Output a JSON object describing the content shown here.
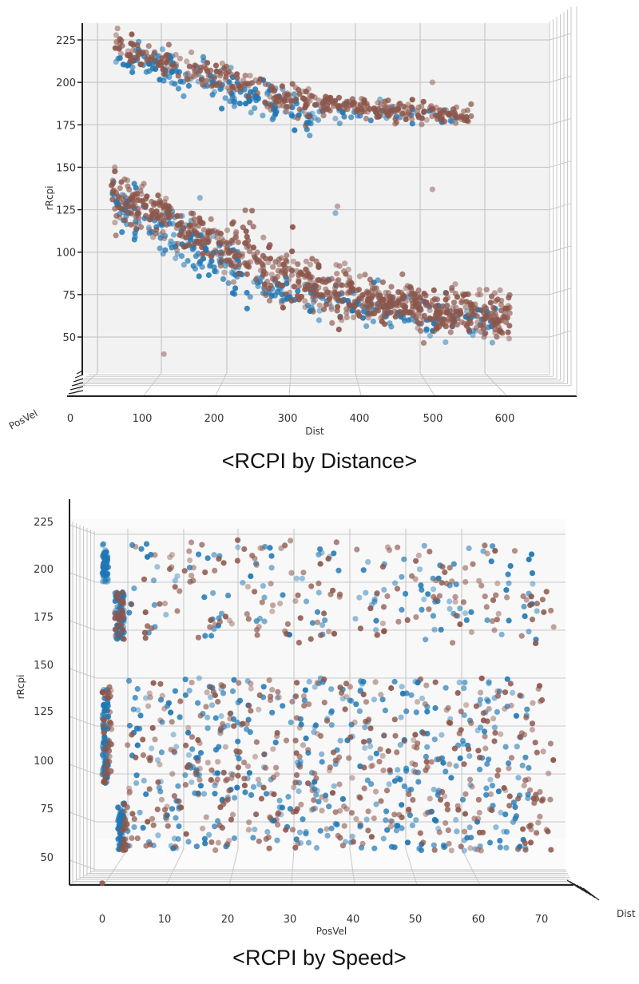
{
  "figure": {
    "top_caption": "<RCPI by Distance>",
    "bottom_caption": "<RCPI by Speed>"
  },
  "colors": {
    "series_blue": "#1f77b4",
    "series_brown": "#8c564b",
    "pane_bg": "#f2f2f2",
    "pane_bg_light": "#f8f8f8",
    "grid": "#c8c8c8",
    "axis": "#222222"
  },
  "chart_data": [
    {
      "type": "scatter",
      "projection": "3d",
      "title": "<RCPI by Distance>",
      "xlabel": "Dist",
      "ylabel": "rRcpi",
      "zlabel": "PosVel",
      "x_ticks": [
        "0",
        "100",
        "200",
        "300",
        "400",
        "500",
        "600"
      ],
      "y_ticks": [
        "225",
        "200",
        "175",
        "150",
        "125",
        "100",
        "75",
        "50"
      ],
      "xlim": [
        0,
        650
      ],
      "ylim": [
        35,
        230
      ],
      "grid": true,
      "legend": null,
      "series": [
        {
          "name": "blue",
          "color": "#1f77b4",
          "clusters": [
            {
              "x_range": [
                35,
                340
              ],
              "y_start": 218,
              "y_end": 180,
              "spread": 9,
              "count": 170
            },
            {
              "x_range": [
                340,
                560
              ],
              "y_start": 182,
              "y_end": 180,
              "spread": 4,
              "count": 45
            },
            {
              "x_range": [
                30,
                230
              ],
              "y_start": 128,
              "y_end": 88,
              "spread": 12,
              "count": 150
            },
            {
              "x_range": [
                230,
                620
              ],
              "y_start": 80,
              "y_end": 55,
              "spread": 10,
              "count": 170
            }
          ],
          "outliers": [
            [
              165,
              132
            ],
            [
              372,
              123
            ],
            [
              540,
              47
            ],
            [
              440,
              190
            ]
          ]
        },
        {
          "name": "brown",
          "color": "#8c564b",
          "clusters": [
            {
              "x_range": [
                35,
                340
              ],
              "y_start": 222,
              "y_end": 186,
              "spread": 8,
              "count": 200
            },
            {
              "x_range": [
                340,
                580
              ],
              "y_start": 188,
              "y_end": 180,
              "spread": 5,
              "count": 170
            },
            {
              "x_range": [
                30,
                230
              ],
              "y_start": 135,
              "y_end": 98,
              "spread": 12,
              "count": 230
            },
            {
              "x_range": [
                230,
                420
              ],
              "y_start": 98,
              "y_end": 70,
              "spread": 14,
              "count": 220
            },
            {
              "x_range": [
                420,
                640
              ],
              "y_start": 72,
              "y_end": 60,
              "spread": 11,
              "count": 330
            }
          ],
          "outliers": [
            [
              35,
              150
            ],
            [
              110,
              40
            ],
            [
              520,
              137
            ],
            [
              520,
              200
            ],
            [
              375,
              127
            ]
          ]
        }
      ]
    },
    {
      "type": "scatter",
      "projection": "3d",
      "title": "<RCPI by Speed>",
      "xlabel": "PosVel",
      "ylabel": "rRcpi",
      "zlabel": "Dist",
      "x_ticks": [
        "0",
        "10",
        "20",
        "30",
        "40",
        "50",
        "60",
        "70"
      ],
      "y_ticks": [
        "225",
        "200",
        "175",
        "150",
        "125",
        "100",
        "75",
        "50"
      ],
      "xlim": [
        -5,
        75
      ],
      "ylim": [
        35,
        230
      ],
      "grid": true,
      "legend": null,
      "series": [
        {
          "name": "blue",
          "color": "#1f77b4",
          "clusters": [
            {
              "x_range": [
                0,
                1
              ],
              "y_range": [
                200,
                220
              ],
              "count": 60
            },
            {
              "x_range": [
                2,
                3.5
              ],
              "y_range": [
                170,
                195
              ],
              "count": 60
            },
            {
              "x_range": [
                0,
                1
              ],
              "y_range": [
                95,
                145
              ],
              "count": 80
            },
            {
              "x_range": [
                2.5,
                3.5
              ],
              "y_range": [
                60,
                85
              ],
              "count": 70
            },
            {
              "x_range": [
                4,
                70
              ],
              "y_range": [
                170,
                220
              ],
              "count": 130
            },
            {
              "x_range": [
                4,
                68
              ],
              "y_range": [
                60,
                150
              ],
              "count": 420
            }
          ]
        },
        {
          "name": "brown",
          "color": "#8c564b",
          "clusters": [
            {
              "x_range": [
                2,
                3.5
              ],
              "y_range": [
                170,
                195
              ],
              "count": 30
            },
            {
              "x_range": [
                0,
                1.5
              ],
              "y_range": [
                95,
                147
              ],
              "count": 40
            },
            {
              "x_range": [
                3,
                4
              ],
              "y_range": [
                60,
                85
              ],
              "count": 20
            },
            {
              "x_range": [
                4,
                72
              ],
              "y_range": [
                168,
                222
              ],
              "count": 160
            },
            {
              "x_range": [
                4,
                72
              ],
              "y_range": [
                60,
                150
              ],
              "count": 420
            }
          ],
          "outliers": [
            [
              0,
              43
            ],
            [
              71,
              70
            ]
          ]
        }
      ]
    }
  ]
}
